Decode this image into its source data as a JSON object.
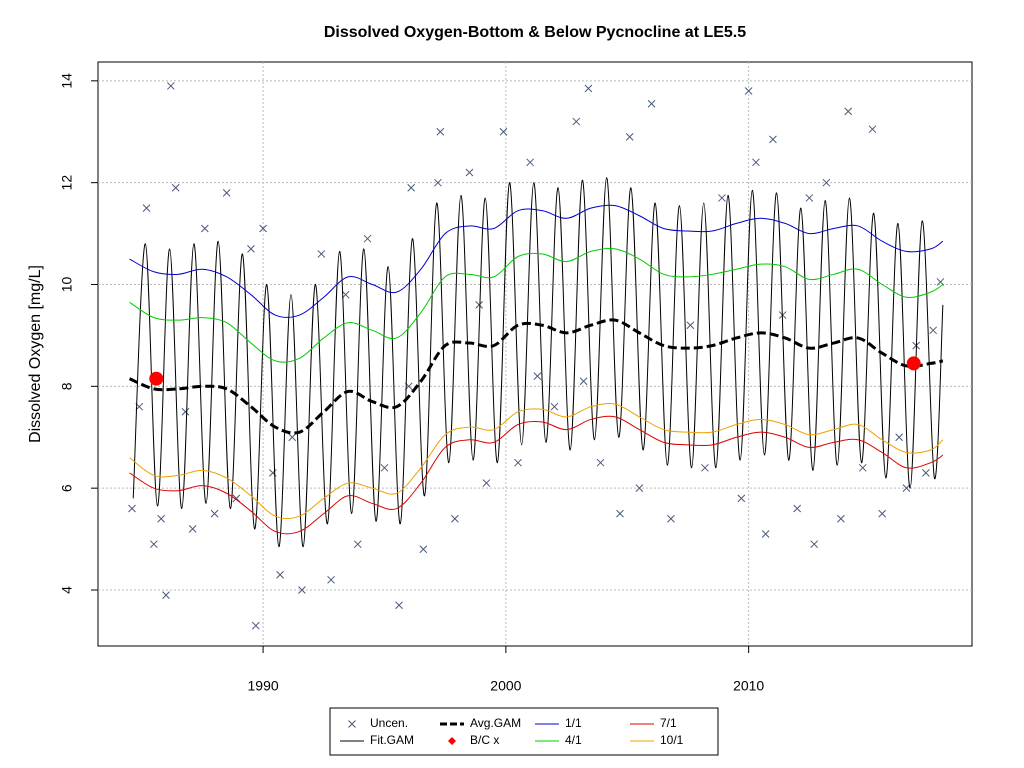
{
  "chart_data": {
    "type": "line",
    "title": "Dissolved Oxygen-Bottom & Below Pycnocline at LE5.5",
    "y_label": "Dissolved Oxygen [mg/L]",
    "xlim": [
      1983.2,
      2019.2
    ],
    "xticks": [
      1990,
      2000,
      2010
    ],
    "ylim": [
      2.9,
      14.37
    ],
    "yticks": [
      4,
      6,
      8,
      10,
      12,
      14
    ],
    "grid": true,
    "legend": "bottom",
    "series": [
      {
        "name": "Uncen.",
        "color": "#4a5a7a",
        "mode": "points",
        "x": [
          1984.6,
          1984.9,
          1985.2,
          1985.5,
          1985.8,
          1986.0,
          1986.2,
          1986.4,
          1986.8,
          1987.1,
          1987.6,
          1988.0,
          1988.5,
          1988.9,
          1989.5,
          1989.7,
          1990.0,
          1990.4,
          1990.7,
          1991.2,
          1991.6,
          1992.4,
          1992.8,
          1993.4,
          1993.9,
          1994.3,
          1995.0,
          1995.6,
          1996.0,
          1996.1,
          1996.6,
          1997.2,
          1997.3,
          1997.9,
          1998.5,
          1998.9,
          1999.2,
          1999.9,
          2000.5,
          2001.0,
          2001.3,
          2002.0,
          2002.9,
          2003.2,
          2003.4,
          2003.9,
          2004.7,
          2005.1,
          2005.5,
          2006.0,
          2006.8,
          2007.6,
          2008.2,
          2008.9,
          2009.7,
          2010.0,
          2010.3,
          2010.7,
          2011.0,
          2011.4,
          2012.0,
          2012.5,
          2012.7,
          2013.2,
          2013.8,
          2014.1,
          2014.7,
          2015.1,
          2015.5,
          2016.2,
          2016.5,
          2016.9,
          2017.3,
          2017.6,
          2017.9
        ],
        "values": [
          5.6,
          7.6,
          11.5,
          4.9,
          5.4,
          3.9,
          13.9,
          11.9,
          7.5,
          5.2,
          11.1,
          5.5,
          11.8,
          5.8,
          10.7,
          3.3,
          11.1,
          6.3,
          4.3,
          7.0,
          4.0,
          10.6,
          4.2,
          9.8,
          4.9,
          10.9,
          6.4,
          3.7,
          8.0,
          11.9,
          4.8,
          12.0,
          13.0,
          5.4,
          12.2,
          9.6,
          6.1,
          13.0,
          6.5,
          12.4,
          8.2,
          7.6,
          13.2,
          8.1,
          13.85,
          6.5,
          5.5,
          12.9,
          6.0,
          13.55,
          5.4,
          9.2,
          6.4,
          11.7,
          5.8,
          13.8,
          12.4,
          5.1,
          12.85,
          9.4,
          5.6,
          11.7,
          4.9,
          12.0,
          5.4,
          13.4,
          6.4,
          13.05,
          5.5,
          7.0,
          6.0,
          8.8,
          6.3,
          9.1,
          10.05
        ]
      },
      {
        "name": "Fit.GAM",
        "color": "#000000",
        "mode": "line",
        "x": [
          1984.65,
          1985.15,
          1985.65,
          1986.15,
          1986.65,
          1987.15,
          1987.65,
          1988.15,
          1988.65,
          1989.15,
          1989.65,
          1990.15,
          1990.65,
          1991.15,
          1991.65,
          1992.15,
          1992.65,
          1993.15,
          1993.65,
          1994.15,
          1994.65,
          1995.15,
          1995.65,
          1996.15,
          1996.65,
          1997.15,
          1997.65,
          1998.15,
          1998.65,
          1999.15,
          1999.65,
          2000.15,
          2000.65,
          2001.15,
          2001.65,
          2002.15,
          2002.65,
          2003.15,
          2003.65,
          2004.15,
          2004.65,
          2005.15,
          2005.65,
          2006.15,
          2006.65,
          2007.15,
          2007.65,
          2008.15,
          2008.65,
          2009.15,
          2009.65,
          2010.15,
          2010.65,
          2011.15,
          2011.65,
          2012.15,
          2012.65,
          2013.15,
          2013.65,
          2014.15,
          2014.65,
          2015.15,
          2015.65,
          2016.15,
          2016.65,
          2017.15,
          2017.65,
          2018.0
        ],
        "values": [
          5.8,
          10.8,
          5.65,
          10.7,
          5.6,
          10.8,
          5.7,
          10.85,
          5.6,
          10.6,
          5.2,
          10.0,
          4.85,
          9.8,
          4.85,
          10.0,
          5.3,
          10.65,
          5.5,
          10.7,
          5.35,
          10.35,
          5.3,
          10.9,
          5.85,
          11.6,
          6.5,
          11.75,
          6.55,
          11.7,
          6.5,
          12.0,
          6.85,
          12.0,
          6.9,
          11.9,
          6.75,
          12.05,
          6.95,
          12.1,
          7.0,
          11.9,
          6.75,
          11.6,
          6.45,
          11.55,
          6.4,
          11.6,
          6.4,
          11.75,
          6.55,
          11.85,
          6.65,
          11.8,
          6.55,
          11.5,
          6.35,
          11.65,
          6.45,
          11.7,
          6.5,
          11.4,
          6.2,
          11.2,
          6.0,
          11.25,
          6.2,
          9.6
        ]
      },
      {
        "name": "Avg.GAM",
        "color": "#000000",
        "mode": "dashed",
        "x": [
          1984.5,
          1985.5,
          1986.5,
          1987.5,
          1988.5,
          1989.5,
          1990.5,
          1991.5,
          1992.5,
          1993.5,
          1994.5,
          1995.5,
          1996.5,
          1997.5,
          1998.5,
          1999.5,
          2000.5,
          2001.5,
          2002.5,
          2003.5,
          2004.5,
          2005.5,
          2006.5,
          2007.5,
          2008.5,
          2009.5,
          2010.5,
          2011.5,
          2012.5,
          2013.5,
          2014.5,
          2015.5,
          2016.5,
          2017.5,
          2018.0
        ],
        "values": [
          8.15,
          7.95,
          7.95,
          8.0,
          7.95,
          7.6,
          7.2,
          7.1,
          7.5,
          7.9,
          7.7,
          7.6,
          8.1,
          8.8,
          8.85,
          8.8,
          9.2,
          9.2,
          9.05,
          9.2,
          9.3,
          9.05,
          8.8,
          8.75,
          8.8,
          8.95,
          9.05,
          8.95,
          8.75,
          8.85,
          8.95,
          8.65,
          8.4,
          8.45,
          8.5
        ]
      },
      {
        "name": "B/C x",
        "color": "#ff0000",
        "mode": "dots",
        "x": [
          1985.6,
          2016.8
        ],
        "values": [
          8.15,
          8.45
        ]
      },
      {
        "name": "1/1",
        "color": "#0000cc",
        "mode": "line",
        "x": [
          1984.5,
          1985.5,
          1986.5,
          1987.5,
          1988.5,
          1989.5,
          1990.5,
          1991.5,
          1992.5,
          1993.5,
          1994.5,
          1995.5,
          1996.5,
          1997.5,
          1998.5,
          1999.5,
          2000.5,
          2001.5,
          2002.5,
          2003.5,
          2004.5,
          2005.5,
          2006.5,
          2007.5,
          2008.5,
          2009.5,
          2010.5,
          2011.5,
          2012.5,
          2013.5,
          2014.5,
          2015.5,
          2016.5,
          2017.5,
          2018.0
        ],
        "values": [
          10.5,
          10.25,
          10.2,
          10.3,
          10.15,
          9.8,
          9.4,
          9.4,
          9.75,
          10.15,
          10.0,
          9.85,
          10.3,
          11.0,
          11.15,
          11.1,
          11.45,
          11.45,
          11.3,
          11.5,
          11.55,
          11.35,
          11.1,
          11.05,
          11.05,
          11.2,
          11.3,
          11.2,
          11.0,
          11.1,
          11.15,
          10.85,
          10.65,
          10.7,
          10.85
        ]
      },
      {
        "name": "4/1",
        "color": "#00cc00",
        "mode": "line",
        "x": [
          1984.5,
          1985.5,
          1986.5,
          1987.5,
          1988.5,
          1989.5,
          1990.5,
          1991.5,
          1992.5,
          1993.5,
          1994.5,
          1995.5,
          1996.5,
          1997.5,
          1998.5,
          1999.5,
          2000.5,
          2001.5,
          2002.5,
          2003.5,
          2004.5,
          2005.5,
          2006.5,
          2007.5,
          2008.5,
          2009.5,
          2010.5,
          2011.5,
          2012.5,
          2013.5,
          2014.5,
          2015.5,
          2016.5,
          2017.5,
          2018.0
        ],
        "values": [
          9.65,
          9.35,
          9.3,
          9.35,
          9.25,
          8.85,
          8.5,
          8.55,
          8.95,
          9.25,
          9.1,
          8.95,
          9.45,
          10.15,
          10.2,
          10.15,
          10.55,
          10.6,
          10.45,
          10.65,
          10.7,
          10.5,
          10.2,
          10.15,
          10.2,
          10.3,
          10.4,
          10.35,
          10.1,
          10.2,
          10.3,
          10.0,
          9.75,
          9.85,
          10.0
        ]
      },
      {
        "name": "7/1",
        "color": "#dd0000",
        "mode": "line",
        "x": [
          1984.5,
          1985.5,
          1986.5,
          1987.5,
          1988.5,
          1989.5,
          1990.5,
          1991.5,
          1992.5,
          1993.5,
          1994.5,
          1995.5,
          1996.5,
          1997.5,
          1998.5,
          1999.5,
          2000.5,
          2001.5,
          2002.5,
          2003.5,
          2004.5,
          2005.5,
          2006.5,
          2007.5,
          2008.5,
          2009.5,
          2010.5,
          2011.5,
          2012.5,
          2013.5,
          2014.5,
          2015.5,
          2016.5,
          2017.5,
          2018.0
        ],
        "values": [
          6.3,
          6.0,
          5.95,
          6.05,
          5.9,
          5.55,
          5.15,
          5.15,
          5.5,
          5.85,
          5.7,
          5.6,
          6.1,
          6.8,
          6.95,
          6.9,
          7.25,
          7.3,
          7.15,
          7.35,
          7.4,
          7.15,
          6.9,
          6.85,
          6.85,
          7.0,
          7.1,
          7.0,
          6.8,
          6.9,
          6.95,
          6.7,
          6.4,
          6.5,
          6.65
        ]
      },
      {
        "name": "10/1",
        "color": "#f0a000",
        "mode": "line",
        "x": [
          1984.5,
          1985.5,
          1986.5,
          1987.5,
          1988.5,
          1989.5,
          1990.5,
          1991.5,
          1992.5,
          1993.5,
          1994.5,
          1995.5,
          1996.5,
          1997.5,
          1998.5,
          1999.5,
          2000.5,
          2001.5,
          2002.5,
          2003.5,
          2004.5,
          2005.5,
          2006.5,
          2007.5,
          2008.5,
          2009.5,
          2010.5,
          2011.5,
          2012.5,
          2013.5,
          2014.5,
          2015.5,
          2016.5,
          2017.5,
          2018.0
        ],
        "values": [
          6.6,
          6.25,
          6.25,
          6.35,
          6.2,
          5.85,
          5.45,
          5.45,
          5.8,
          6.1,
          6.0,
          5.9,
          6.4,
          7.05,
          7.2,
          7.15,
          7.5,
          7.55,
          7.4,
          7.6,
          7.65,
          7.4,
          7.15,
          7.1,
          7.1,
          7.25,
          7.35,
          7.25,
          7.05,
          7.15,
          7.25,
          6.95,
          6.7,
          6.75,
          6.95
        ]
      }
    ]
  }
}
